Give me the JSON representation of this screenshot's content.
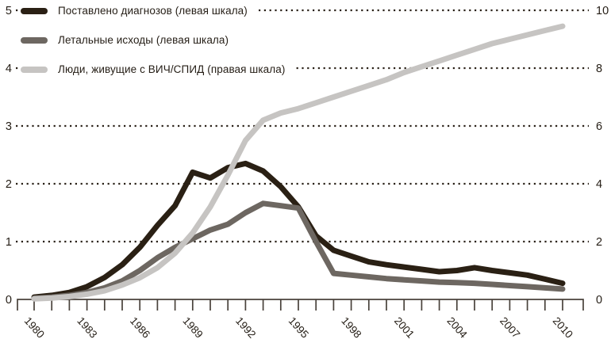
{
  "chart_data": {
    "type": "line",
    "x": [
      1980,
      1981,
      1982,
      1983,
      1984,
      1985,
      1986,
      1987,
      1988,
      1989,
      1990,
      1991,
      1992,
      1993,
      1994,
      1995,
      1996,
      1997,
      1998,
      1999,
      2000,
      2001,
      2002,
      2003,
      2004,
      2005,
      2006,
      2007,
      2008,
      2009,
      2010
    ],
    "series": [
      {
        "name": "Поставлено диагнозов (левая шкала)",
        "axis": "left",
        "color": "#2a2014",
        "values": [
          0.04,
          0.07,
          0.12,
          0.22,
          0.38,
          0.6,
          0.9,
          1.28,
          1.62,
          2.2,
          2.1,
          2.28,
          2.35,
          2.22,
          1.95,
          1.6,
          1.1,
          0.85,
          0.75,
          0.65,
          0.6,
          0.56,
          0.52,
          0.48,
          0.5,
          0.55,
          0.5,
          0.46,
          0.42,
          0.35,
          0.28
        ]
      },
      {
        "name": "Летальные исходы (левая шкала)",
        "axis": "left",
        "color": "#6d6761",
        "values": [
          0.02,
          0.04,
          0.07,
          0.12,
          0.2,
          0.32,
          0.5,
          0.72,
          0.9,
          1.05,
          1.2,
          1.3,
          1.5,
          1.66,
          1.62,
          1.58,
          1.0,
          0.45,
          0.42,
          0.39,
          0.36,
          0.34,
          0.32,
          0.3,
          0.29,
          0.28,
          0.26,
          0.24,
          0.22,
          0.2,
          0.18
        ]
      },
      {
        "name": "Люди, живущие с ВИЧ/СПИД (правая шкала)",
        "axis": "right",
        "color": "#c6c4c2",
        "values": [
          0.02,
          0.05,
          0.1,
          0.18,
          0.3,
          0.5,
          0.75,
          1.1,
          1.6,
          2.3,
          3.2,
          4.3,
          5.5,
          6.2,
          6.45,
          6.6,
          6.8,
          7.0,
          7.2,
          7.4,
          7.6,
          7.85,
          8.05,
          8.25,
          8.45,
          8.65,
          8.85,
          9.0,
          9.15,
          9.3,
          9.45
        ]
      }
    ],
    "left_axis": {
      "range": [
        0,
        5
      ],
      "tick_values": [
        0,
        1,
        2,
        3,
        4,
        5
      ],
      "tick_labels": [
        "0",
        "1",
        "2",
        "3",
        "4",
        "5"
      ]
    },
    "right_axis": {
      "range": [
        0,
        10
      ],
      "tick_values": [
        0,
        2,
        4,
        6,
        8,
        10
      ],
      "tick_labels": [
        "0",
        "2",
        "4",
        "6",
        "8",
        "10"
      ]
    },
    "x_axis": {
      "tick_every_years": 1,
      "label_years": [
        1980,
        1983,
        1986,
        1989,
        1992,
        1995,
        1998,
        2001,
        2004,
        2007,
        2010
      ],
      "label_texts": [
        "1980",
        "1983",
        "1986",
        "1989",
        "1992",
        "1995",
        "1998",
        "2001",
        "2004",
        "2007",
        "2010"
      ]
    },
    "grid": {
      "style": "dotted-horizontal",
      "color": "#2a2118"
    },
    "title": "",
    "xlabel": "",
    "ylabel": ""
  },
  "legend": {
    "items": [
      {
        "label": "Поставлено диагнозов (левая шкала)",
        "color": "#2a2014"
      },
      {
        "label": "Летальные исходы (левая шкала)",
        "color": "#6d6761"
      },
      {
        "label": "Люди, живущие с ВИЧ/СПИД (правая шкала)",
        "color": "#c6c4c2"
      }
    ]
  },
  "colors": {
    "background": "#ffffff",
    "axis": "#49423b",
    "text": "#241d15"
  }
}
